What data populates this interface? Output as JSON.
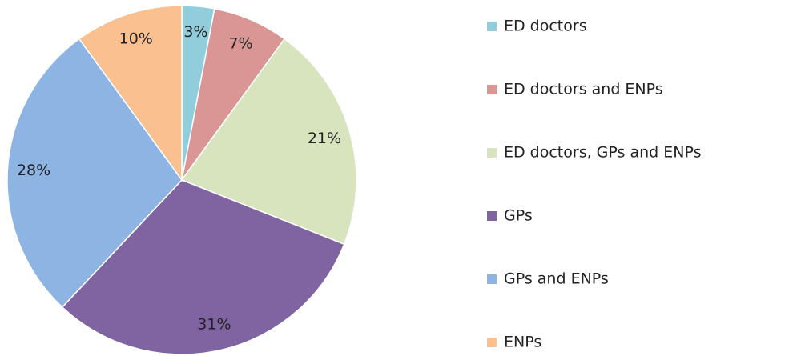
{
  "chart_data": {
    "type": "pie",
    "categories": [
      "ED doctors",
      "ED doctors and ENPs",
      "ED doctors, GPs and ENPs",
      "GPs",
      "GPs and ENPs",
      "ENPs"
    ],
    "values": [
      3,
      7,
      21,
      31,
      28,
      10
    ],
    "value_labels": [
      "3%",
      "7%",
      "21%",
      "31%",
      "28%",
      "10%"
    ],
    "colors": [
      "#92cddc",
      "#d99694",
      "#d7e4bd",
      "#8064a2",
      "#8eb4e3",
      "#fac090"
    ],
    "legend": "right"
  }
}
